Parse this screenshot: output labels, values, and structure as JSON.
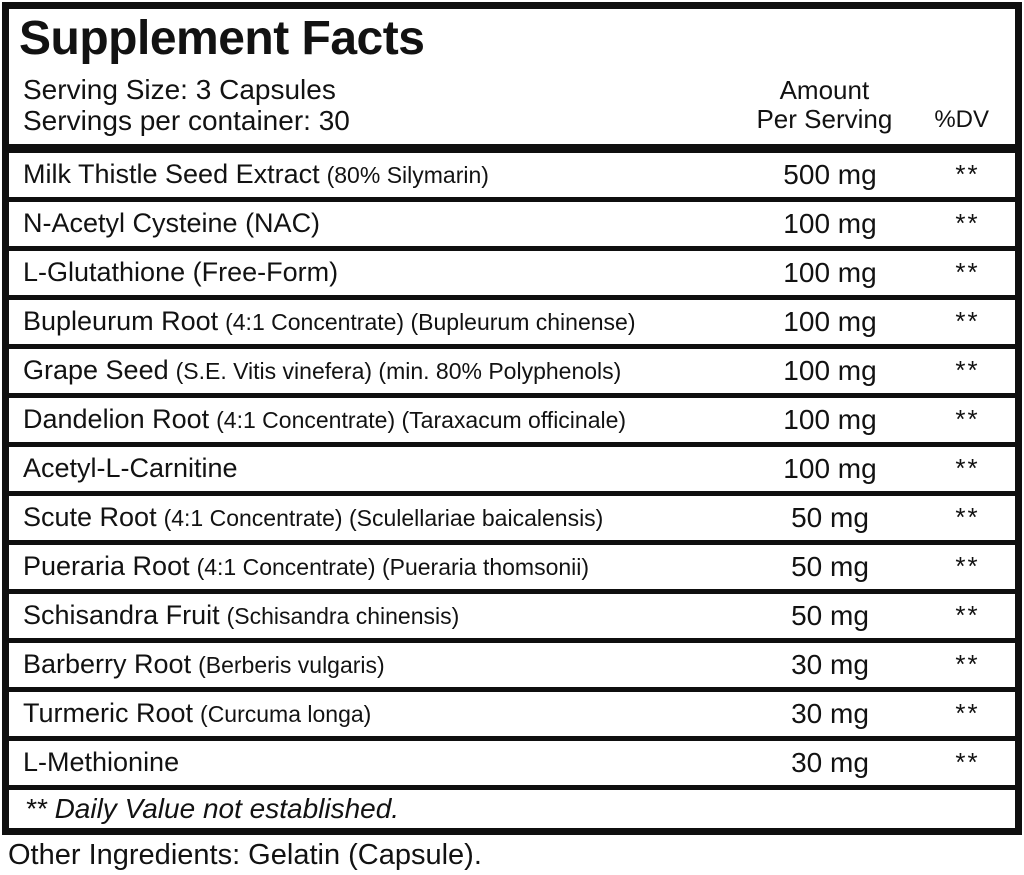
{
  "label": {
    "title": "Supplement Facts",
    "serving_size": "Serving Size: 3 Capsules",
    "servings_per_container": "Servings per container: 30",
    "columns": {
      "amount_line1": "Amount",
      "amount_line2": "Per Serving",
      "dv": "%DV"
    },
    "rows": [
      {
        "name": "Milk Thistle Seed Extract",
        "detail": "(80% Silymarin)",
        "amount": "500 mg",
        "dv": "**"
      },
      {
        "name": "N-Acetyl Cysteine (NAC)",
        "detail": "",
        "amount": "100 mg",
        "dv": "**"
      },
      {
        "name": "L-Glutathione (Free-Form)",
        "detail": "",
        "amount": "100 mg",
        "dv": "**"
      },
      {
        "name": "Bupleurum Root",
        "detail": "(4:1 Concentrate) (Bupleurum chinense)",
        "amount": "100 mg",
        "dv": "**"
      },
      {
        "name": "Grape Seed",
        "detail": "(S.E. Vitis vinefera) (min. 80% Polyphenols)",
        "amount": "100 mg",
        "dv": "**"
      },
      {
        "name": "Dandelion Root",
        "detail": "(4:1 Concentrate) (Taraxacum officinale)",
        "amount": "100 mg",
        "dv": "**"
      },
      {
        "name": "Acetyl-L-Carnitine",
        "detail": "",
        "amount": "100 mg",
        "dv": "**"
      },
      {
        "name": "Scute Root",
        "detail": "(4:1 Concentrate) (Sculellariae baicalensis)",
        "amount": "50 mg",
        "dv": "**"
      },
      {
        "name": "Pueraria Root",
        "detail": "(4:1 Concentrate) (Pueraria thomsonii)",
        "amount": "50 mg",
        "dv": "**"
      },
      {
        "name": "Schisandra Fruit",
        "detail": "(Schisandra chinensis)",
        "amount": "50 mg",
        "dv": "**"
      },
      {
        "name": "Barberry Root",
        "detail": "(Berberis vulgaris)",
        "amount": "30 mg",
        "dv": "**"
      },
      {
        "name": "Turmeric Root",
        "detail": "(Curcuma longa)",
        "amount": "30 mg",
        "dv": "**"
      },
      {
        "name": "L-Methionine",
        "detail": "",
        "amount": "30 mg",
        "dv": "**"
      }
    ],
    "footnote": "** Daily Value not established.",
    "other_ingredients": "Other Ingredients: Gelatin (Capsule).",
    "colors": {
      "border": "#0f0f0f",
      "text": "#121212",
      "background": "#ffffff"
    }
  }
}
